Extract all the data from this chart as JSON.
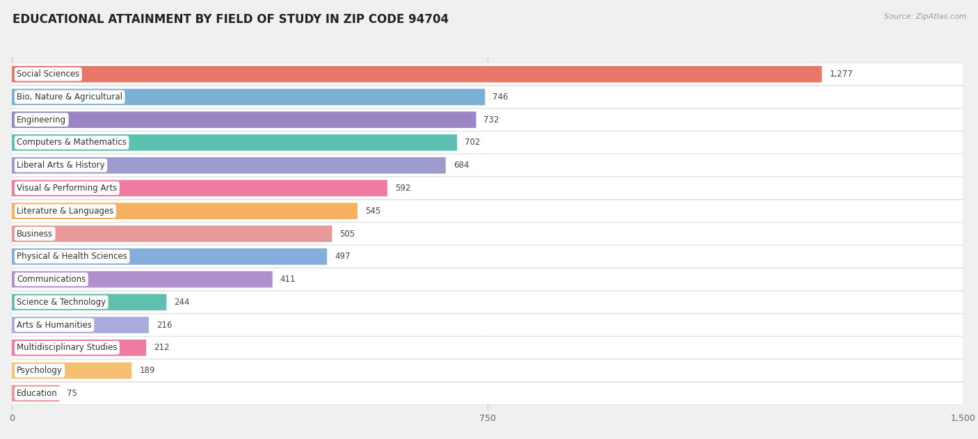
{
  "title": "EDUCATIONAL ATTAINMENT BY FIELD OF STUDY IN ZIP CODE 94704",
  "source": "Source: ZipAtlas.com",
  "categories": [
    "Social Sciences",
    "Bio, Nature & Agricultural",
    "Engineering",
    "Computers & Mathematics",
    "Liberal Arts & History",
    "Visual & Performing Arts",
    "Literature & Languages",
    "Business",
    "Physical & Health Sciences",
    "Communications",
    "Science & Technology",
    "Arts & Humanities",
    "Multidisciplinary Studies",
    "Psychology",
    "Education"
  ],
  "values": [
    1277,
    746,
    732,
    702,
    684,
    592,
    545,
    505,
    497,
    411,
    244,
    216,
    212,
    189,
    75
  ],
  "colors": [
    "#E8776A",
    "#7BAFD4",
    "#9B86C5",
    "#5CC0B0",
    "#9B9BCE",
    "#F07BA0",
    "#F5B060",
    "#E89898",
    "#85AEDD",
    "#B090CC",
    "#60C0B0",
    "#AAAADD",
    "#F07BA0",
    "#F5C070",
    "#E89898"
  ],
  "xlim_max": 1500,
  "xticks": [
    0,
    750,
    1500
  ],
  "background_color": "#f0f0f0",
  "row_bg_color": "#ffffff",
  "title_fontsize": 12,
  "label_fontsize": 8.5,
  "value_fontsize": 8.5,
  "tick_fontsize": 9
}
